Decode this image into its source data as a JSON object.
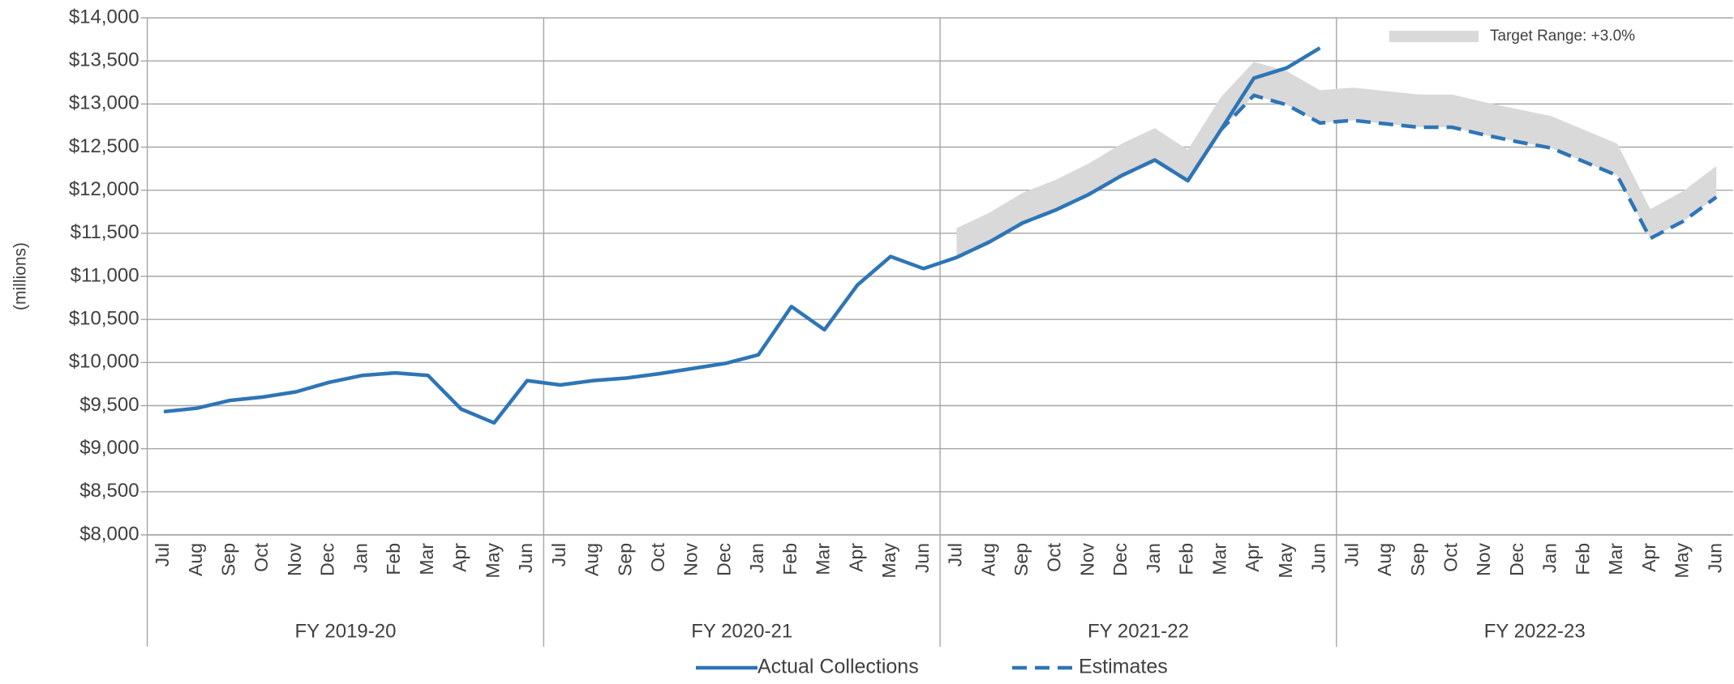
{
  "chart_data": {
    "type": "line",
    "y_axis_label": "(millions)",
    "categories": [
      "Jul",
      "Aug",
      "Sep",
      "Oct",
      "Nov",
      "Dec",
      "Jan",
      "Feb",
      "Mar",
      "Apr",
      "May",
      "Jun",
      "Jul",
      "Aug",
      "Sep",
      "Oct",
      "Nov",
      "Dec",
      "Jan",
      "Feb",
      "Mar",
      "Apr",
      "May",
      "Jun",
      "Jul",
      "Aug",
      "Sep",
      "Oct",
      "Nov",
      "Dec",
      "Jan",
      "Feb",
      "Mar",
      "Apr",
      "May",
      "Jun",
      "Jul",
      "Aug",
      "Sep",
      "Oct",
      "Nov",
      "Dec",
      "Jan",
      "Feb",
      "Mar",
      "Apr",
      "May",
      "Jun"
    ],
    "groups": [
      "FY 2019-20",
      "FY 2020-21",
      "FY 2021-22",
      "FY 2022-23"
    ],
    "ylim": [
      8000,
      14000
    ],
    "yticks": [
      {
        "value": 8000,
        "label": "$8,000"
      },
      {
        "value": 8500,
        "label": "$8,500"
      },
      {
        "value": 9000,
        "label": "$9,000"
      },
      {
        "value": 9500,
        "label": "$9,500"
      },
      {
        "value": 10000,
        "label": "$10,000"
      },
      {
        "value": 10500,
        "label": "$10,500"
      },
      {
        "value": 11000,
        "label": "$11,000"
      },
      {
        "value": 11500,
        "label": "$11,500"
      },
      {
        "value": 12000,
        "label": "$12,000"
      },
      {
        "value": 12500,
        "label": "$12,500"
      },
      {
        "value": 13000,
        "label": "$13,000"
      },
      {
        "value": 13500,
        "label": "$13,500"
      },
      {
        "value": 14000,
        "label": "$14,000"
      }
    ],
    "grid": true,
    "band": {
      "name": "Target Range: +3.0%",
      "color": "#d9d9d9",
      "lower_series": 1,
      "values": [
        null,
        null,
        null,
        null,
        null,
        null,
        null,
        null,
        null,
        null,
        null,
        null,
        null,
        null,
        null,
        null,
        null,
        null,
        null,
        null,
        null,
        null,
        null,
        null,
        11560,
        11740,
        11970,
        12120,
        12310,
        12540,
        12720,
        12470,
        13080,
        13490,
        13380,
        13160,
        13190,
        13150,
        13110,
        13110,
        13020,
        12940,
        12860,
        12700,
        12540,
        11780,
        11990,
        12280
      ]
    },
    "series": [
      {
        "name": "Actual Collections",
        "color": "#2e75b6",
        "dashed": false,
        "values": [
          9430,
          9470,
          9560,
          9600,
          9660,
          9770,
          9850,
          9880,
          9850,
          9460,
          9300,
          9790,
          9740,
          9790,
          9820,
          9870,
          9930,
          9990,
          10090,
          10650,
          10380,
          10900,
          11230,
          11090,
          11220,
          11400,
          11620,
          11770,
          11950,
          12170,
          12350,
          12110,
          12700,
          13300,
          13420,
          13650,
          null,
          null,
          null,
          null,
          null,
          null,
          null,
          null,
          null,
          null,
          null,
          null
        ]
      },
      {
        "name": "Estimates",
        "color": "#2e75b6",
        "dashed": true,
        "values": [
          null,
          null,
          null,
          null,
          null,
          null,
          null,
          null,
          null,
          null,
          null,
          null,
          null,
          null,
          null,
          null,
          null,
          null,
          null,
          null,
          null,
          null,
          null,
          null,
          11220,
          11400,
          11620,
          11770,
          11950,
          12170,
          12350,
          12110,
          12700,
          13100,
          12990,
          12780,
          12810,
          12770,
          12730,
          12730,
          12640,
          12560,
          12490,
          12330,
          12170,
          11440,
          11640,
          11920
        ]
      }
    ]
  }
}
